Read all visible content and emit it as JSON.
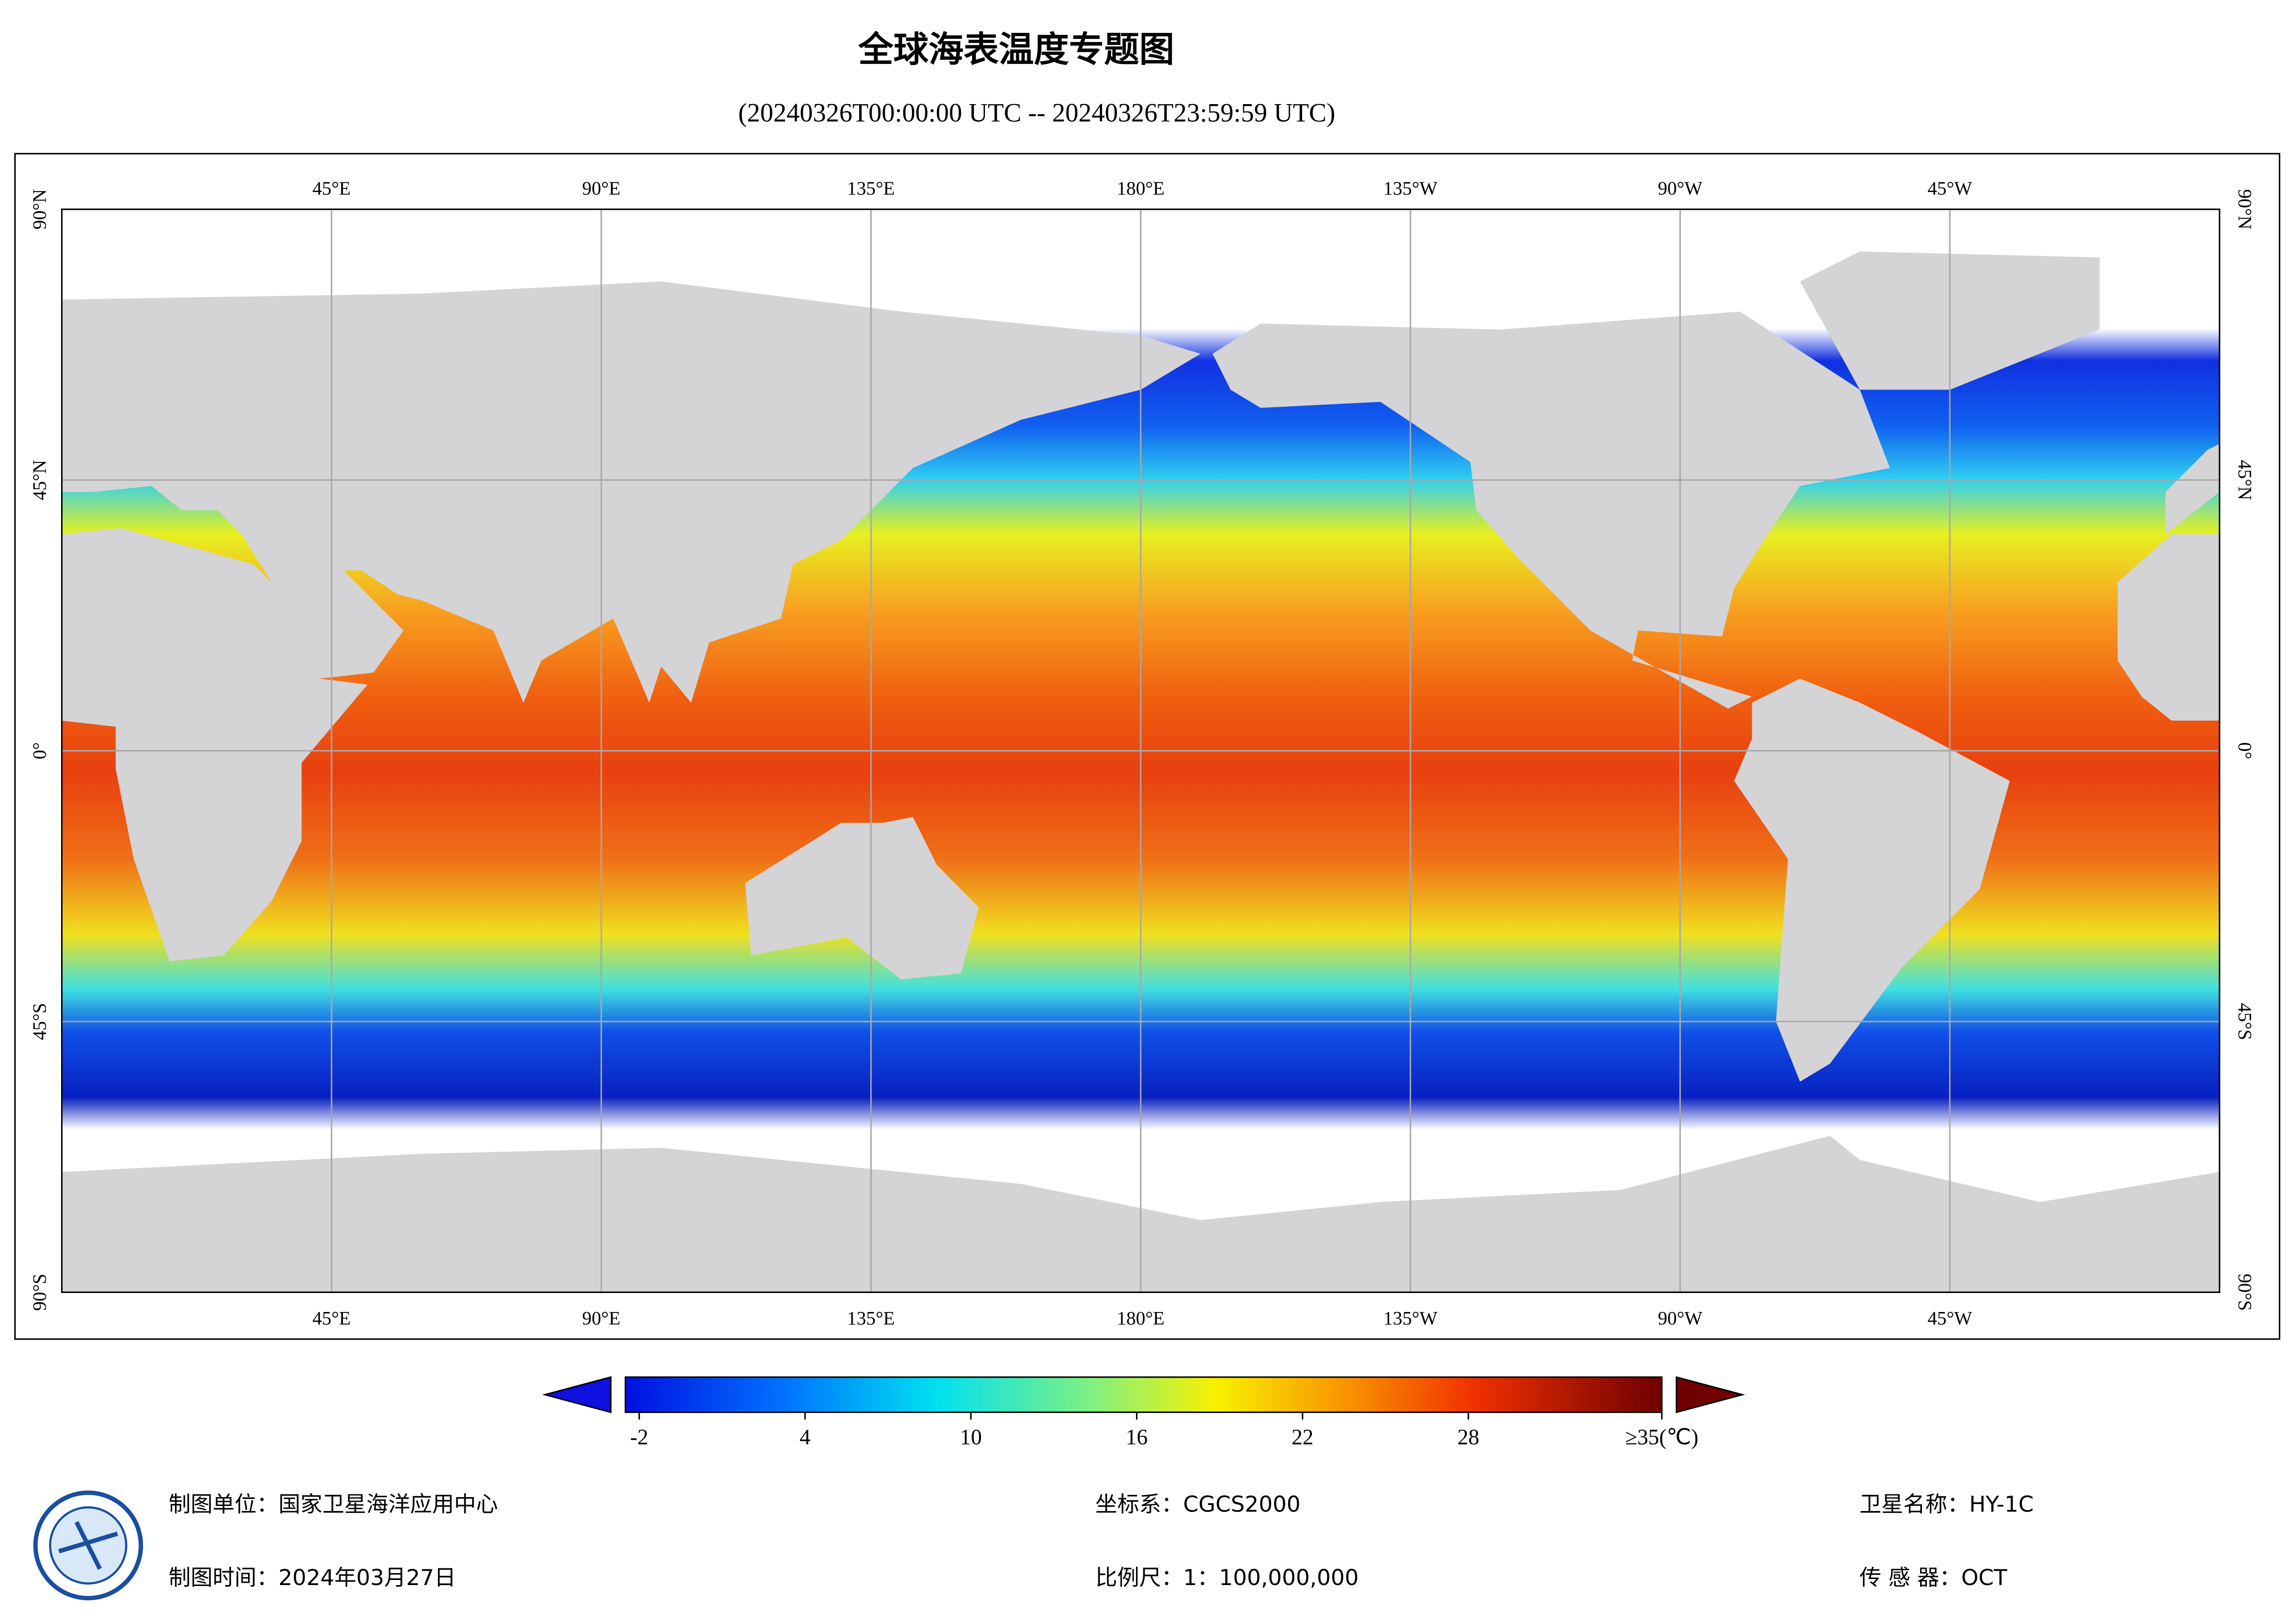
{
  "title": "全球海表温度专题图",
  "subtitle": "(20240326T00:00:00 UTC -- 20240326T23:59:59 UTC)",
  "map": {
    "xlim": [
      0,
      360
    ],
    "ylim": [
      -90,
      90
    ],
    "lon_ticks": [
      {
        "value": 45,
        "label": "45°E"
      },
      {
        "value": 90,
        "label": "90°E"
      },
      {
        "value": 135,
        "label": "135°E"
      },
      {
        "value": 180,
        "label": "180°E"
      },
      {
        "value": 225,
        "label": "135°W"
      },
      {
        "value": 270,
        "label": "90°W"
      },
      {
        "value": 315,
        "label": "45°W"
      }
    ],
    "lat_ticks": [
      {
        "value": 90,
        "label": "90°N"
      },
      {
        "value": 45,
        "label": "45°N"
      },
      {
        "value": 0,
        "label": "0°"
      },
      {
        "value": -45,
        "label": "45°S"
      },
      {
        "value": -90,
        "label": "90°S"
      }
    ]
  },
  "colorbar": {
    "lim": [
      -2.5,
      35
    ],
    "ticks": [
      -2,
      4,
      10,
      16,
      22,
      28,
      {
        "value": 35,
        "label": "≥35(℃)"
      }
    ]
  },
  "footer": {
    "producer": "制图单位：国家卫星海洋应用中心",
    "date": "制图时间：2024年03月27日",
    "crs": "坐标系：CGCS2000",
    "scale": "比例尺：1：100,000,000",
    "satellite": "卫星名称：HY-1C",
    "sensor": "传 感 器：OCT"
  }
}
